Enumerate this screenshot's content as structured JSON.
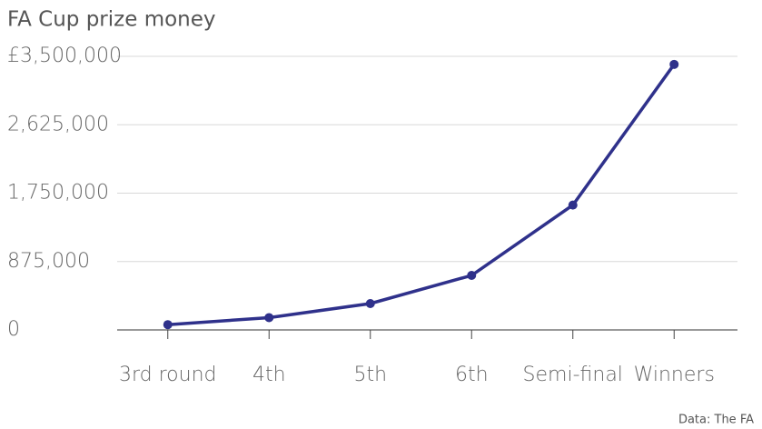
{
  "chart_data": {
    "type": "line",
    "title": "FA Cup prize money",
    "source": "Data: The FA",
    "categories": [
      "3rd round",
      "4th",
      "5th",
      "6th",
      "Semi-final",
      "Winners"
    ],
    "values": [
      67500,
      157500,
      337500,
      697500,
      1597500,
      3397500
    ],
    "color": "#2f318b",
    "ylim": [
      0,
      3500000
    ],
    "yticks": [
      0,
      {
        "value": 875000,
        "label": "875,000"
      },
      {
        "value": 1750000,
        "label": "1,750,000"
      },
      {
        "value": 2625000,
        "label": "2,625,000"
      },
      {
        "value": 3500000,
        "label": "£3,500,000"
      }
    ],
    "grid": true
  }
}
